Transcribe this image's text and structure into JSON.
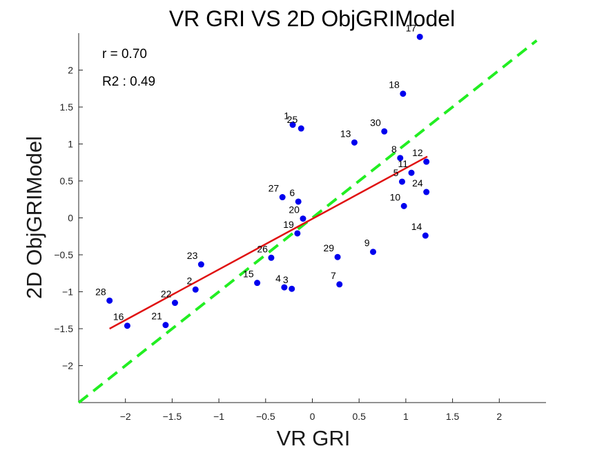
{
  "chart_data": {
    "type": "scatter",
    "title": "VR GRI VS 2D ObjGRIModel",
    "xlabel": "VR GRI",
    "ylabel": "2D ObjGRIModel",
    "xlim": [
      -2.5,
      2.5
    ],
    "ylim": [
      -2.5,
      2.5
    ],
    "xticks": [
      -2,
      -1.5,
      -1,
      -0.5,
      0,
      0.5,
      1,
      1.5,
      2
    ],
    "yticks": [
      -2,
      -1.5,
      -1,
      -0.5,
      0,
      0.5,
      1,
      1.5,
      2
    ],
    "xtick_labels": [
      "−2",
      "−1.5",
      "−1",
      "−0.5",
      "0",
      "0.5",
      "1",
      "1.5",
      "2"
    ],
    "ytick_labels": [
      "−2",
      "−1.5",
      "−1",
      "−0.5",
      "0",
      "0.5",
      "1",
      "1.5",
      "2"
    ],
    "annotations": [
      "r = 0.70",
      "R2 : 0.49"
    ],
    "point_color": "#0000ee",
    "fit_line": {
      "color": "#e01010",
      "x": [
        -2.17,
        1.23
      ],
      "y": [
        -1.5,
        0.83
      ]
    },
    "identity_line": {
      "color": "#22ee22",
      "x": [
        -2.5,
        2.4
      ],
      "y": [
        -2.5,
        2.4
      ]
    },
    "points": [
      {
        "label": "1",
        "x": -0.21,
        "y": 1.26
      },
      {
        "label": "2",
        "x": -1.25,
        "y": -0.97
      },
      {
        "label": "3",
        "x": -0.22,
        "y": -0.96
      },
      {
        "label": "4",
        "x": -0.3,
        "y": -0.94
      },
      {
        "label": "5",
        "x": 0.96,
        "y": 0.49
      },
      {
        "label": "6",
        "x": -0.15,
        "y": 0.22
      },
      {
        "label": "7",
        "x": 0.29,
        "y": -0.9
      },
      {
        "label": "8",
        "x": 0.94,
        "y": 0.81
      },
      {
        "label": "9",
        "x": 0.65,
        "y": -0.46
      },
      {
        "label": "10",
        "x": 0.98,
        "y": 0.16
      },
      {
        "label": "11",
        "x": 1.06,
        "y": 0.61
      },
      {
        "label": "12",
        "x": 1.22,
        "y": 0.76
      },
      {
        "label": "13",
        "x": 0.45,
        "y": 1.02
      },
      {
        "label": "14",
        "x": 1.21,
        "y": -0.24
      },
      {
        "label": "15",
        "x": -0.59,
        "y": -0.88
      },
      {
        "label": "16",
        "x": -1.98,
        "y": -1.46
      },
      {
        "label": "17",
        "x": 1.15,
        "y": 2.45
      },
      {
        "label": "18",
        "x": 0.97,
        "y": 1.68
      },
      {
        "label": "19",
        "x": -0.16,
        "y": -0.21
      },
      {
        "label": "20",
        "x": -0.1,
        "y": -0.01
      },
      {
        "label": "21",
        "x": -1.57,
        "y": -1.45
      },
      {
        "label": "22",
        "x": -1.47,
        "y": -1.15
      },
      {
        "label": "23",
        "x": -1.19,
        "y": -0.63
      },
      {
        "label": "24",
        "x": 1.22,
        "y": 0.35
      },
      {
        "label": "25",
        "x": -0.12,
        "y": 1.21
      },
      {
        "label": "26",
        "x": -0.44,
        "y": -0.54
      },
      {
        "label": "27",
        "x": -0.32,
        "y": 0.28
      },
      {
        "label": "28",
        "x": -2.17,
        "y": -1.12
      },
      {
        "label": "29",
        "x": 0.27,
        "y": -0.53
      },
      {
        "label": "30",
        "x": 0.77,
        "y": 1.17
      }
    ]
  }
}
